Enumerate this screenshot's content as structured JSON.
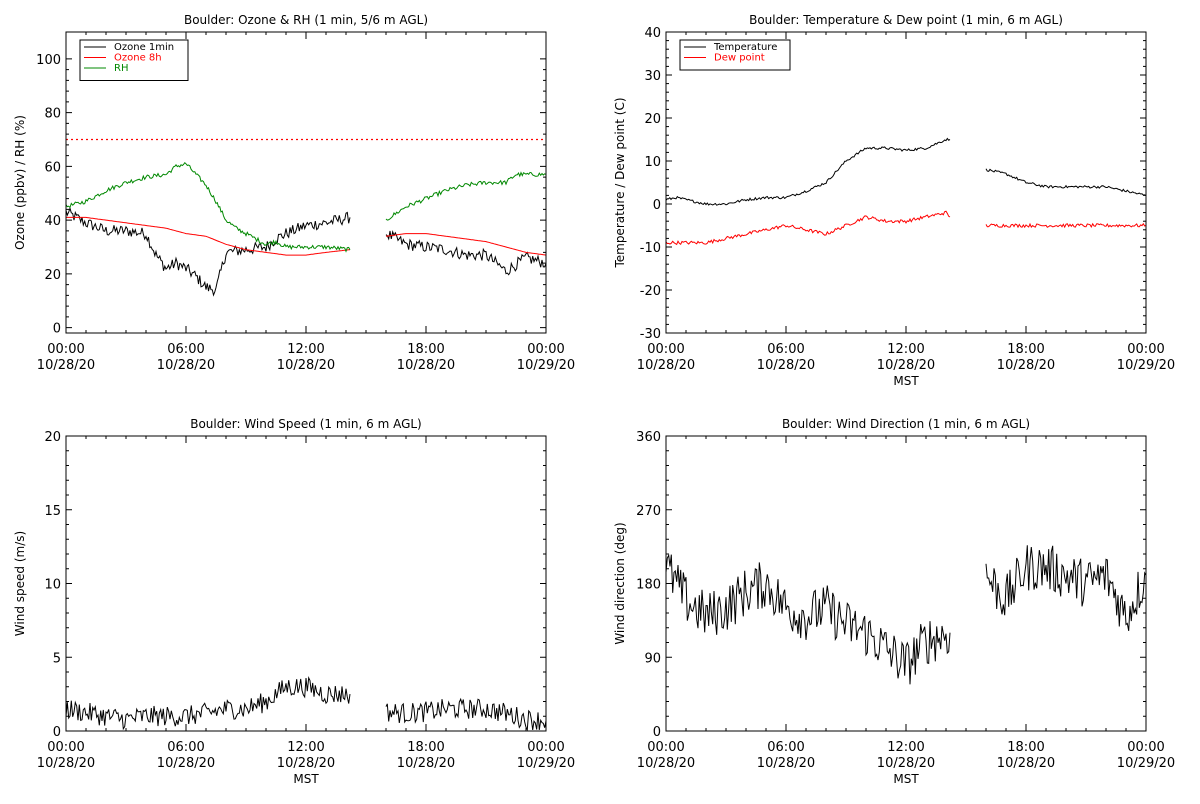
{
  "chart_data": [
    {
      "type": "line",
      "title": "Boulder: Ozone & RH (1 min, 5/6 m AGL)",
      "ylabel": "Ozone (ppbv) / RH (%)",
      "xlabel": "",
      "x_range_hours": [
        0,
        24
      ],
      "x_ticks": [
        {
          "t": 0,
          "line1": "00:00",
          "line2": "10/28/20"
        },
        {
          "t": 6,
          "line1": "06:00",
          "line2": "10/28/20"
        },
        {
          "t": 12,
          "line1": "12:00",
          "line2": "10/28/20"
        },
        {
          "t": 18,
          "line1": "18:00",
          "line2": "10/28/20"
        },
        {
          "t": 24,
          "line1": "00:00",
          "line2": "10/29/20"
        }
      ],
      "ylim": [
        -2,
        110
      ],
      "y_ticks": [
        0,
        20,
        40,
        60,
        80,
        100
      ],
      "reference_line": {
        "y": 70,
        "color": "#ff0000",
        "style": "dotted"
      },
      "legend_position": "top-left",
      "series": [
        {
          "name": "Ozone 1min",
          "color": "#000000",
          "noise": 2.2,
          "segments": [
            [
              [
                0,
                43
              ],
              [
                1,
                39
              ],
              [
                2,
                36
              ],
              [
                3,
                36
              ],
              [
                4,
                35
              ],
              [
                4.5,
                27
              ],
              [
                5,
                22
              ],
              [
                5.5,
                24
              ],
              [
                6,
                22
              ],
              [
                6.5,
                19
              ],
              [
                7,
                15
              ],
              [
                7.5,
                14
              ],
              [
                8,
                28
              ],
              [
                9,
                29
              ],
              [
                10,
                30
              ],
              [
                10.5,
                33
              ],
              [
                11,
                35
              ],
              [
                12,
                38
              ],
              [
                13,
                39
              ],
              [
                14.2,
                41
              ]
            ],
            [
              [
                16,
                35
              ],
              [
                17,
                31
              ],
              [
                18,
                30
              ],
              [
                19,
                29
              ],
              [
                20,
                27
              ],
              [
                21,
                27
              ],
              [
                22,
                21
              ],
              [
                23,
                26
              ],
              [
                24,
                24
              ]
            ]
          ]
        },
        {
          "name": "Ozone 8h",
          "color": "#ff0000",
          "noise": 0,
          "segments": [
            [
              [
                0,
                41
              ],
              [
                1,
                41
              ],
              [
                2,
                40
              ],
              [
                3,
                39
              ],
              [
                4,
                38
              ],
              [
                5,
                37
              ],
              [
                6,
                35
              ],
              [
                7,
                34
              ],
              [
                8,
                31
              ],
              [
                9,
                29
              ],
              [
                10,
                28
              ],
              [
                11,
                27
              ],
              [
                12,
                27
              ],
              [
                13,
                28
              ],
              [
                14.2,
                29
              ]
            ],
            [
              [
                16,
                34
              ],
              [
                17,
                35
              ],
              [
                18,
                35
              ],
              [
                19,
                34
              ],
              [
                20,
                33
              ],
              [
                21,
                32
              ],
              [
                22,
                30
              ],
              [
                23,
                28
              ],
              [
                24,
                27
              ]
            ]
          ]
        },
        {
          "name": "RH",
          "color": "#008800",
          "noise": 0.8,
          "segments": [
            [
              [
                0,
                45
              ],
              [
                1,
                47
              ],
              [
                2,
                51
              ],
              [
                3,
                54
              ],
              [
                4,
                56
              ],
              [
                5,
                57
              ],
              [
                5.5,
                60
              ],
              [
                6,
                61
              ],
              [
                6.5,
                57
              ],
              [
                7,
                53
              ],
              [
                7.5,
                47
              ],
              [
                8,
                40
              ],
              [
                8.5,
                37
              ],
              [
                9,
                35
              ],
              [
                10,
                31
              ],
              [
                10.5,
                32
              ],
              [
                11,
                30
              ],
              [
                12,
                30
              ],
              [
                13,
                30
              ],
              [
                14.2,
                29
              ]
            ],
            [
              [
                16,
                40
              ],
              [
                17,
                45
              ],
              [
                18,
                48
              ],
              [
                19,
                51
              ],
              [
                20,
                53
              ],
              [
                21,
                54
              ],
              [
                22,
                54
              ],
              [
                22.5,
                57
              ],
              [
                23,
                57
              ],
              [
                24,
                57
              ]
            ]
          ]
        }
      ]
    },
    {
      "type": "line",
      "title": "Boulder: Temperature & Dew point (1 min, 6 m AGL)",
      "ylabel": "Temperature / Dew point (C)",
      "xlabel": "MST",
      "x_range_hours": [
        0,
        24
      ],
      "x_ticks": [
        {
          "t": 0,
          "line1": "00:00",
          "line2": "10/28/20"
        },
        {
          "t": 6,
          "line1": "06:00",
          "line2": "10/28/20"
        },
        {
          "t": 12,
          "line1": "12:00",
          "line2": "10/28/20"
        },
        {
          "t": 18,
          "line1": "18:00",
          "line2": "10/28/20"
        },
        {
          "t": 24,
          "line1": "00:00",
          "line2": "10/29/20"
        }
      ],
      "ylim": [
        -30,
        40
      ],
      "y_ticks": [
        -30,
        -20,
        -10,
        0,
        10,
        20,
        30,
        40
      ],
      "legend_position": "top-left",
      "series": [
        {
          "name": "Temperature",
          "color": "#000000",
          "noise": 0.3,
          "segments": [
            [
              [
                0,
                1
              ],
              [
                0.5,
                1.5
              ],
              [
                1,
                1
              ],
              [
                2,
                0
              ],
              [
                3,
                0
              ],
              [
                4,
                1
              ],
              [
                5,
                1.5
              ],
              [
                6,
                1.5
              ],
              [
                7,
                3
              ],
              [
                8,
                5
              ],
              [
                9,
                10
              ],
              [
                10,
                13
              ],
              [
                11,
                13
              ],
              [
                12,
                12.5
              ],
              [
                13,
                13
              ],
              [
                14,
                15
              ],
              [
                14.2,
                15
              ]
            ],
            [
              [
                16,
                8
              ],
              [
                17,
                7
              ],
              [
                18,
                5
              ],
              [
                19,
                4
              ],
              [
                20,
                4
              ],
              [
                21,
                4
              ],
              [
                22,
                4
              ],
              [
                23,
                3
              ],
              [
                24,
                2
              ]
            ]
          ]
        },
        {
          "name": "Dew point",
          "color": "#ff0000",
          "noise": 0.4,
          "segments": [
            [
              [
                0,
                -9
              ],
              [
                1,
                -9
              ],
              [
                2,
                -9
              ],
              [
                3,
                -8
              ],
              [
                4,
                -7
              ],
              [
                5,
                -6
              ],
              [
                6,
                -5
              ],
              [
                7,
                -6
              ],
              [
                8,
                -7
              ],
              [
                9,
                -5
              ],
              [
                10,
                -3
              ],
              [
                11,
                -4
              ],
              [
                12,
                -4
              ],
              [
                13,
                -3
              ],
              [
                14,
                -2
              ],
              [
                14.2,
                -3
              ]
            ],
            [
              [
                16,
                -5
              ],
              [
                17,
                -5
              ],
              [
                18,
                -5
              ],
              [
                19,
                -5
              ],
              [
                20,
                -5
              ],
              [
                21,
                -5
              ],
              [
                22,
                -5
              ],
              [
                23,
                -5
              ],
              [
                24,
                -5
              ]
            ]
          ]
        }
      ]
    },
    {
      "type": "line",
      "title": "Boulder: Wind Speed (1 min, 6 m AGL)",
      "ylabel": "Wind speed (m/s)",
      "xlabel": "MST",
      "x_range_hours": [
        0,
        24
      ],
      "x_ticks": [
        {
          "t": 0,
          "line1": "00:00",
          "line2": "10/28/20"
        },
        {
          "t": 6,
          "line1": "06:00",
          "line2": "10/28/20"
        },
        {
          "t": 12,
          "line1": "12:00",
          "line2": "10/28/20"
        },
        {
          "t": 18,
          "line1": "18:00",
          "line2": "10/28/20"
        },
        {
          "t": 24,
          "line1": "00:00",
          "line2": "10/29/20"
        }
      ],
      "ylim": [
        0,
        20
      ],
      "y_ticks": [
        0,
        5,
        10,
        15,
        20
      ],
      "series": [
        {
          "name": "",
          "color": "#000000",
          "noise": 0.7,
          "segments": [
            [
              [
                0,
                1.5
              ],
              [
                2,
                1
              ],
              [
                3,
                0.8
              ],
              [
                4,
                1
              ],
              [
                5,
                1
              ],
              [
                6,
                1
              ],
              [
                7,
                1.2
              ],
              [
                8,
                1.5
              ],
              [
                9,
                1.5
              ],
              [
                10,
                2
              ],
              [
                11,
                3
              ],
              [
                12,
                3
              ],
              [
                13,
                2.5
              ],
              [
                14.2,
                2.5
              ]
            ],
            [
              [
                16,
                1.3
              ],
              [
                17,
                1.2
              ],
              [
                18,
                1.3
              ],
              [
                19,
                1.5
              ],
              [
                20,
                1.5
              ],
              [
                21,
                1.5
              ],
              [
                22,
                1.2
              ],
              [
                23,
                0.8
              ],
              [
                24,
                0.7
              ]
            ]
          ]
        }
      ]
    },
    {
      "type": "line",
      "title": "Boulder: Wind Direction (1 min, 6 m AGL)",
      "ylabel": "Wind direction (deg)",
      "xlabel": "MST",
      "x_range_hours": [
        0,
        24
      ],
      "x_ticks": [
        {
          "t": 0,
          "line1": "00:00",
          "line2": "10/28/20"
        },
        {
          "t": 6,
          "line1": "06:00",
          "line2": "10/28/20"
        },
        {
          "t": 12,
          "line1": "12:00",
          "line2": "10/28/20"
        },
        {
          "t": 18,
          "line1": "18:00",
          "line2": "10/28/20"
        },
        {
          "t": 24,
          "line1": "00:00",
          "line2": "10/29/20"
        }
      ],
      "ylim": [
        0,
        360
      ],
      "y_ticks": [
        0,
        90,
        180,
        270,
        360
      ],
      "series": [
        {
          "name": "",
          "color": "#000000",
          "noise": 30,
          "segments": [
            [
              [
                0,
                200
              ],
              [
                1,
                160
              ],
              [
                2,
                140
              ],
              [
                3,
                150
              ],
              [
                4,
                170
              ],
              [
                5,
                180
              ],
              [
                6,
                150
              ],
              [
                7,
                140
              ],
              [
                8,
                150
              ],
              [
                9,
                130
              ],
              [
                10,
                120
              ],
              [
                11,
                100
              ],
              [
                12,
                80
              ],
              [
                13,
                110
              ],
              [
                14.2,
                120
              ]
            ],
            [
              [
                16,
                190
              ],
              [
                17,
                160
              ],
              [
                18,
                200
              ],
              [
                19,
                200
              ],
              [
                20,
                190
              ],
              [
                21,
                180
              ],
              [
                22,
                190
              ],
              [
                23,
                140
              ],
              [
                24,
                190
              ]
            ]
          ]
        }
      ]
    }
  ]
}
